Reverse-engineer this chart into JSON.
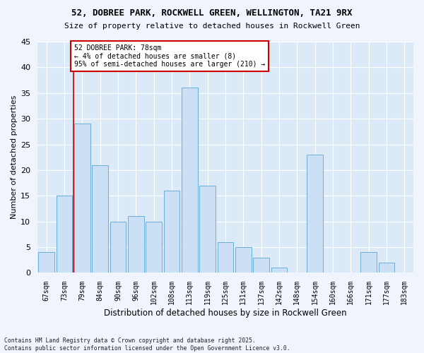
{
  "title1": "52, DOBREE PARK, ROCKWELL GREEN, WELLINGTON, TA21 9RX",
  "title2": "Size of property relative to detached houses in Rockwell Green",
  "xlabel": "Distribution of detached houses by size in Rockwell Green",
  "ylabel": "Number of detached properties",
  "categories": [
    "67sqm",
    "73sqm",
    "79sqm",
    "84sqm",
    "90sqm",
    "96sqm",
    "102sqm",
    "108sqm",
    "113sqm",
    "119sqm",
    "125sqm",
    "131sqm",
    "137sqm",
    "142sqm",
    "148sqm",
    "154sqm",
    "160sqm",
    "166sqm",
    "171sqm",
    "177sqm",
    "183sqm"
  ],
  "values": [
    4,
    15,
    29,
    21,
    10,
    11,
    10,
    16,
    36,
    17,
    6,
    5,
    3,
    1,
    0,
    23,
    0,
    0,
    4,
    2,
    0
  ],
  "bar_color": "#cce0f5",
  "bar_edge_color": "#6aaed6",
  "bg_color": "#dce9f7",
  "grid_color": "#ffffff",
  "vline_x": 1.5,
  "vline_color": "#cc0000",
  "annotation_text": "52 DOBREE PARK: 78sqm\n← 4% of detached houses are smaller (8)\n95% of semi-detached houses are larger (210) →",
  "annotation_box_color": "#cc0000",
  "footer": "Contains HM Land Registry data © Crown copyright and database right 2025.\nContains public sector information licensed under the Open Government Licence v3.0.",
  "ylim": [
    0,
    45
  ],
  "yticks": [
    0,
    5,
    10,
    15,
    20,
    25,
    30,
    35,
    40,
    45
  ],
  "fig_bg": "#f0f4fc"
}
